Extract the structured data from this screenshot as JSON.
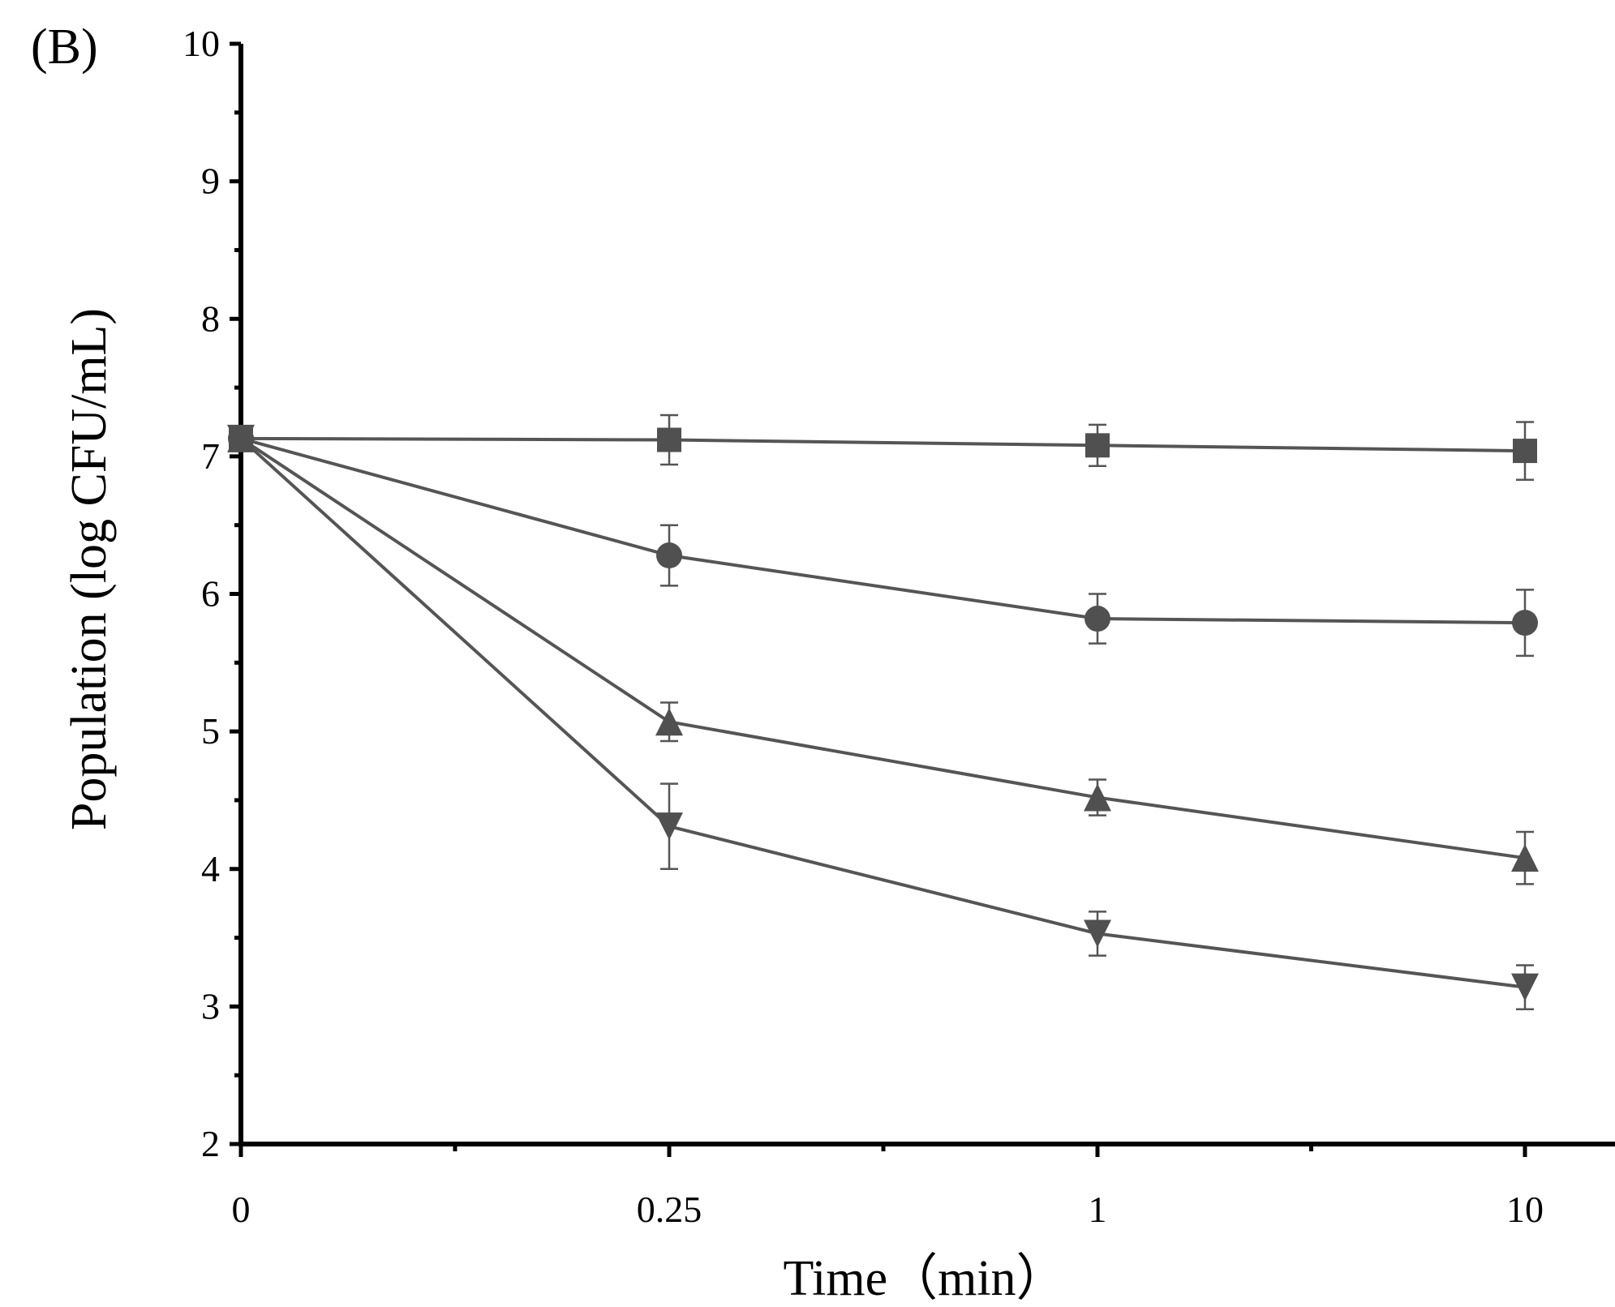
{
  "chart_data": {
    "type": "line",
    "panel_label": "(B)",
    "title": "",
    "xlabel": "Time（min）",
    "ylabel": "Population (log CFU/mL)",
    "ylim": [
      2,
      10
    ],
    "y_ticks": [
      "2",
      "3",
      "4",
      "5",
      "6",
      "7",
      "8",
      "9",
      "10"
    ],
    "x_categories": [
      "0",
      "0.25",
      "1",
      "10"
    ],
    "x_scale": "categorical (equally spaced)",
    "grid": false,
    "legend": "none",
    "line_color": "#555555",
    "marker_color": "#505050",
    "series": [
      {
        "name": "series-1",
        "marker": "square",
        "values": [
          7.13,
          7.12,
          7.08,
          7.04
        ],
        "errors": [
          0.08,
          0.18,
          0.15,
          0.21
        ]
      },
      {
        "name": "series-2",
        "marker": "circle",
        "values": [
          7.13,
          6.28,
          5.82,
          5.79
        ],
        "errors": [
          0.08,
          0.22,
          0.18,
          0.24
        ]
      },
      {
        "name": "series-3",
        "marker": "triangle-up",
        "values": [
          7.13,
          5.07,
          4.52,
          4.08
        ],
        "errors": [
          0.08,
          0.14,
          0.13,
          0.19
        ]
      },
      {
        "name": "series-4",
        "marker": "triangle-down",
        "values": [
          7.13,
          4.31,
          3.53,
          3.14
        ],
        "errors": [
          0.08,
          0.31,
          0.16,
          0.16
        ]
      }
    ]
  }
}
